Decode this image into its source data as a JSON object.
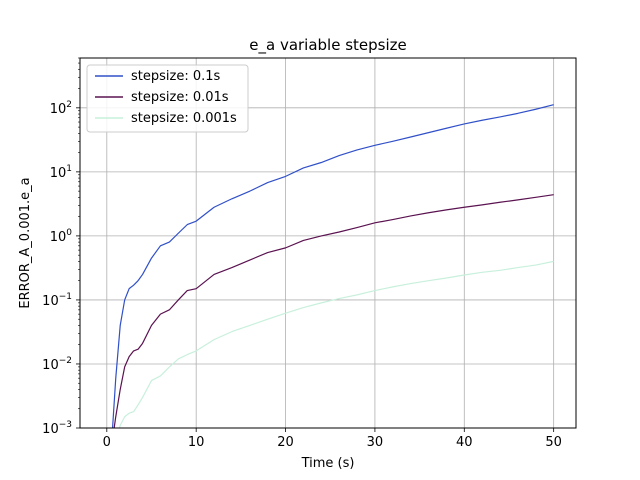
{
  "chart_data": {
    "type": "line",
    "title": "e_a variable stepsize",
    "xlabel": "Time (s)",
    "ylabel": "ERROR_A_0.001.e_a",
    "xlim": [
      -3,
      52.5
    ],
    "ylim": [
      0.001,
      600
    ],
    "yscale": "log",
    "grid": true,
    "legend_position": "upper-left",
    "xticks": [
      0,
      10,
      20,
      30,
      40,
      50
    ],
    "xtick_labels": [
      "0",
      "10",
      "20",
      "30",
      "40",
      "50"
    ],
    "yticks": [
      0.001,
      0.01,
      0.1,
      1,
      10,
      100
    ],
    "ytick_labels": [
      {
        "base": "10",
        "exp": "−3"
      },
      {
        "base": "10",
        "exp": "−2"
      },
      {
        "base": "10",
        "exp": "−1"
      },
      {
        "base": "10",
        "exp": "0"
      },
      {
        "base": "10",
        "exp": "1"
      },
      {
        "base": "10",
        "exp": "2"
      }
    ],
    "series": [
      {
        "name": "stepsize: 0.1s",
        "color": "#3050c8",
        "x": [
          0.6,
          1.0,
          1.5,
          2.0,
          2.5,
          3.0,
          3.5,
          4.0,
          5.0,
          6.0,
          7.0,
          8.0,
          9.0,
          10.0,
          12.0,
          14.0,
          16.0,
          18.0,
          20.0,
          22.0,
          24.0,
          26.0,
          28.0,
          30.0,
          32.0,
          34.0,
          36.0,
          38.0,
          40.0,
          42.0,
          44.0,
          46.0,
          48.0,
          50.0
        ],
        "y": [
          0.0008,
          0.006,
          0.04,
          0.1,
          0.15,
          0.17,
          0.2,
          0.25,
          0.45,
          0.7,
          0.8,
          1.1,
          1.5,
          1.7,
          2.8,
          3.8,
          5.0,
          6.8,
          8.5,
          11.5,
          14.0,
          18.0,
          22.0,
          26.0,
          30.0,
          35.0,
          41.0,
          48.0,
          56.0,
          64.0,
          72.0,
          82.0,
          95.0,
          112.0
        ]
      },
      {
        "name": "stepsize: 0.01s",
        "color": "#5a1250",
        "x": [
          0.6,
          1.0,
          1.5,
          2.0,
          2.5,
          3.0,
          3.5,
          4.0,
          5.0,
          6.0,
          7.0,
          8.0,
          9.0,
          10.0,
          12.0,
          14.0,
          16.0,
          18.0,
          20.0,
          22.0,
          24.0,
          26.0,
          28.0,
          30.0,
          32.0,
          34.0,
          36.0,
          38.0,
          40.0,
          42.0,
          44.0,
          46.0,
          48.0,
          50.0
        ],
        "y": [
          0.0006,
          0.0015,
          0.004,
          0.009,
          0.013,
          0.016,
          0.017,
          0.021,
          0.04,
          0.06,
          0.07,
          0.1,
          0.14,
          0.15,
          0.25,
          0.32,
          0.42,
          0.55,
          0.65,
          0.85,
          1.0,
          1.15,
          1.35,
          1.6,
          1.8,
          2.05,
          2.3,
          2.55,
          2.8,
          3.05,
          3.35,
          3.65,
          4.0,
          4.4
        ]
      },
      {
        "name": "stepsize: 0.001s",
        "color": "#c8f0dc",
        "x": [
          1.2,
          1.5,
          2.0,
          2.5,
          3.0,
          3.5,
          4.0,
          5.0,
          6.0,
          7.0,
          8.0,
          9.0,
          10.0,
          12.0,
          14.0,
          16.0,
          18.0,
          20.0,
          22.0,
          24.0,
          26.0,
          28.0,
          30.0,
          32.0,
          34.0,
          36.0,
          38.0,
          40.0,
          42.0,
          44.0,
          46.0,
          48.0,
          50.0
        ],
        "y": [
          0.0008,
          0.0011,
          0.0015,
          0.0017,
          0.0018,
          0.0023,
          0.003,
          0.0055,
          0.0065,
          0.009,
          0.012,
          0.014,
          0.016,
          0.024,
          0.032,
          0.04,
          0.05,
          0.062,
          0.076,
          0.09,
          0.105,
          0.12,
          0.14,
          0.16,
          0.18,
          0.2,
          0.22,
          0.245,
          0.27,
          0.29,
          0.32,
          0.35,
          0.4
        ]
      }
    ]
  }
}
